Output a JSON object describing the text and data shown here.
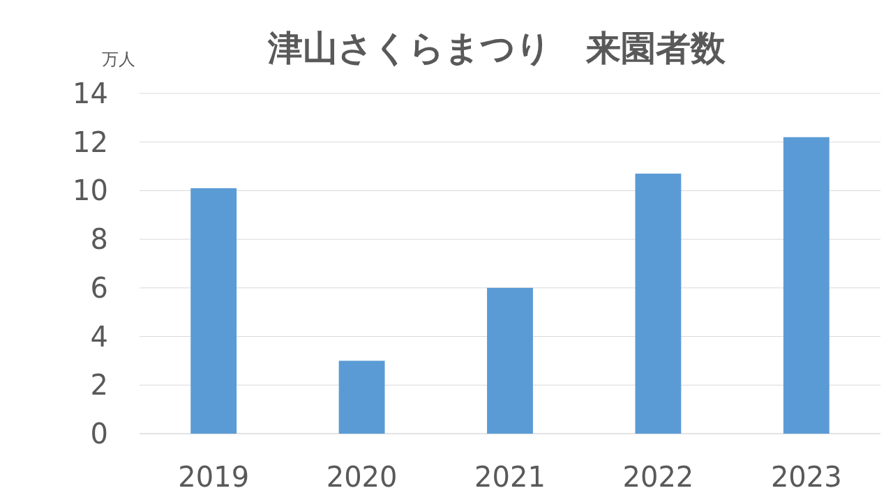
{
  "chart_data": {
    "type": "bar",
    "title": "津山さくらまつり　来園者数",
    "ylabel": "万人",
    "categories": [
      "2019",
      "2020",
      "2021",
      "2022",
      "2023"
    ],
    "values": [
      10.1,
      3.0,
      6.0,
      10.7,
      12.2
    ],
    "color": "#5b9bd5",
    "ylim": [
      0,
      14
    ],
    "yticks": [
      0,
      2,
      4,
      6,
      8,
      10,
      12,
      14
    ],
    "grid": "y"
  }
}
